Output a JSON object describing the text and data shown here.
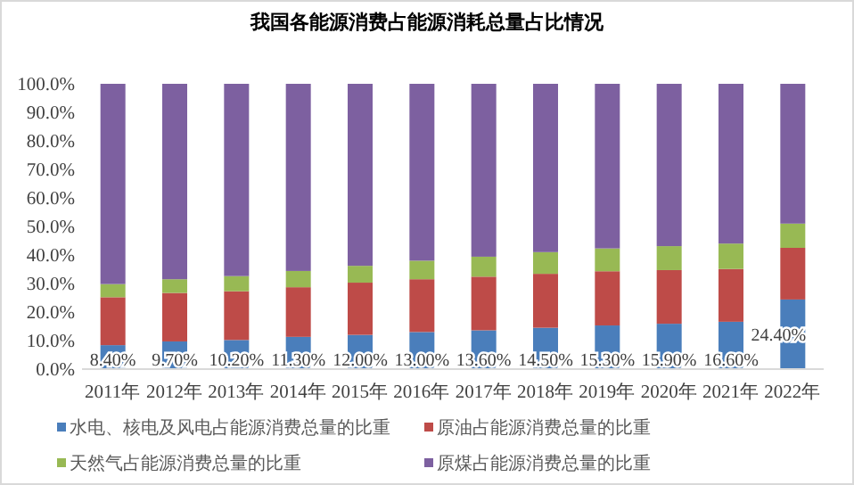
{
  "chart_data": {
    "type": "bar",
    "stacked": true,
    "title": "我国各能源消费占能源消耗总量占比情况",
    "categories": [
      "2011年",
      "2012年",
      "2013年",
      "2014年",
      "2015年",
      "2016年",
      "2017年",
      "2018年",
      "2019年",
      "2020年",
      "2021年",
      "2022年"
    ],
    "series": [
      {
        "name": "水电、核电及风电占能源消费总量的比重",
        "color": "#4a7ebb",
        "values": [
          8.4,
          9.7,
          10.2,
          11.3,
          12.0,
          13.0,
          13.6,
          14.5,
          15.3,
          15.9,
          16.6,
          24.4
        ],
        "value_labels": [
          "8.40%",
          "9.70%",
          "10.20%",
          "11.30%",
          "12.00%",
          "13.00%",
          "13.60%",
          "14.50%",
          "15.30%",
          "15.90%",
          "16.60%",
          "24.40%"
        ]
      },
      {
        "name": "原油占能源消费总量的比重",
        "color": "#be4b48",
        "values": [
          16.8,
          17.0,
          17.1,
          17.4,
          18.3,
          18.5,
          18.8,
          18.9,
          19.0,
          18.8,
          18.5,
          18.1
        ]
      },
      {
        "name": "天然气占能源消费总量的比重",
        "color": "#98b954",
        "values": [
          4.6,
          4.8,
          5.3,
          5.7,
          5.9,
          6.5,
          7.0,
          7.6,
          8.0,
          8.4,
          8.9,
          8.5
        ]
      },
      {
        "name": "原煤占能源消费总量的比重",
        "color": "#7d60a0",
        "values": [
          70.2,
          68.5,
          67.4,
          65.6,
          63.8,
          62.0,
          60.6,
          59.0,
          57.7,
          56.9,
          56.0,
          49.0
        ]
      }
    ],
    "ylim": [
      0,
      100
    ],
    "yticks": [
      {
        "value": 0,
        "label": "0.0%"
      },
      {
        "value": 10,
        "label": "10.0%"
      },
      {
        "value": 20,
        "label": "20.0%"
      },
      {
        "value": 30,
        "label": "30.0%"
      },
      {
        "value": 40,
        "label": "40.0%"
      },
      {
        "value": 50,
        "label": "50.0%"
      },
      {
        "value": 60,
        "label": "60.0%"
      },
      {
        "value": 70,
        "label": "70.0%"
      },
      {
        "value": 80,
        "label": "80.0%"
      },
      {
        "value": 90,
        "label": "90.0%"
      },
      {
        "value": 100,
        "label": "100.0%"
      }
    ],
    "grid": false,
    "legend": "bottom"
  }
}
